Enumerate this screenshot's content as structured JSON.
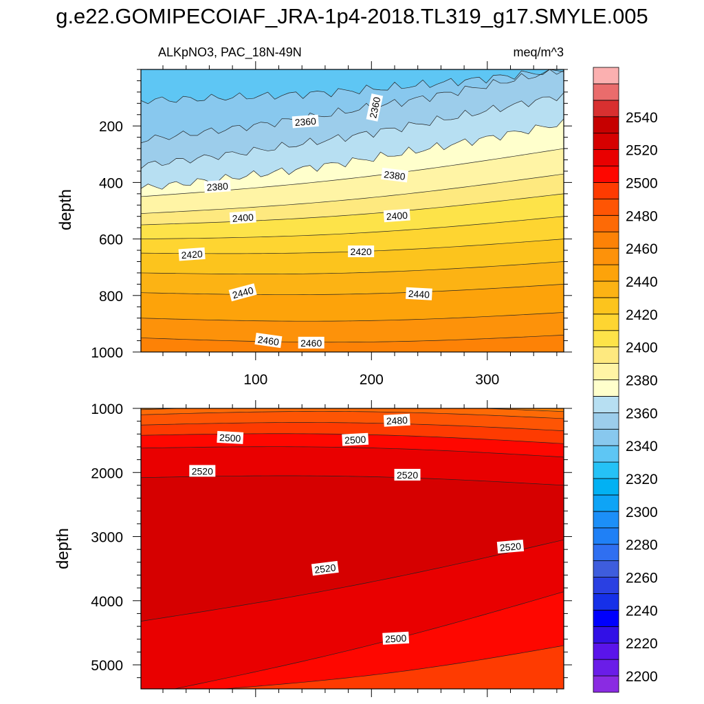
{
  "title": "g.e22.GOMIPECOIAF_JRA-1p4-2018.TL319_g17.SMYLE.005",
  "colors": {
    "band_edges": [
      2190,
      2200,
      2210,
      2220,
      2230,
      2240,
      2250,
      2260,
      2270,
      2280,
      2290,
      2300,
      2310,
      2320,
      2330,
      2340,
      2350,
      2360,
      2370,
      2380,
      2390,
      2400,
      2410,
      2420,
      2430,
      2440,
      2450,
      2460,
      2470,
      2480,
      2490,
      2500,
      2510,
      2520,
      2530,
      2540,
      2550,
      2560
    ],
    "band_fills": [
      "#8a2be2",
      "#6a1de8",
      "#5a14ea",
      "#3210e6",
      "#0000fd",
      "#1630e8",
      "#2a40e2",
      "#3e5ddd",
      "#2f6ff1",
      "#1f80f6",
      "#1c8ff8",
      "#0ea4f6",
      "#02b1f3",
      "#25c2f6",
      "#5ec6f4",
      "#88c8ee",
      "#9ccdeb",
      "#b7dff2",
      "#ffffcc",
      "#fff4a5",
      "#fee97f",
      "#fde349",
      "#fed531",
      "#fcc41d",
      "#fcb314",
      "#fda30a",
      "#fd920a",
      "#fd8206",
      "#fd6a06",
      "#fe5504",
      "#fe3b01",
      "#fe0700",
      "#e90000",
      "#d60000",
      "#c60000",
      "#d83030",
      "#ea6c6c",
      "#fbb0b0"
    ]
  },
  "colorbar": {
    "labels": [
      "2200",
      "2220",
      "2240",
      "2260",
      "2280",
      "2300",
      "2320",
      "2340",
      "2360",
      "2380",
      "2400",
      "2420",
      "2440",
      "2460",
      "2480",
      "2500",
      "2520",
      "2540"
    ]
  },
  "chart_data": [
    {
      "type": "contour",
      "panel": "upper",
      "title_left": "ALKpNO3, PAC_18N-49N",
      "title_right": "meq/m^3",
      "xlabel": "",
      "ylabel": "depth",
      "xlim": [
        1,
        366
      ],
      "ylim": [
        1000,
        0
      ],
      "x_ticks": [
        "100",
        "200",
        "300"
      ],
      "y_ticks": [
        "200",
        "400",
        "600",
        "800",
        "1000"
      ],
      "contour_interval": 10,
      "contour_lines": [
        {
          "level": 2340,
          "x": [
            1,
            366
          ],
          "depth_start": 110,
          "depth_end": 0
        },
        {
          "level": 2350,
          "x": [
            1,
            366
          ],
          "depth_start": 250,
          "depth_end": 0
        },
        {
          "level": 2360,
          "x": [
            1,
            366
          ],
          "depth_start": 340,
          "depth_end": 90
        },
        {
          "level": 2370,
          "x": [
            1,
            366
          ],
          "depth_start": 420,
          "depth_end": 190
        },
        {
          "level": 2380,
          "x": [
            1,
            366
          ],
          "depth_start": 450,
          "depth_end": 280
        },
        {
          "level": 2390,
          "x": [
            1,
            366
          ],
          "depth_start": 510,
          "depth_end": 370
        },
        {
          "level": 2400,
          "x": [
            1,
            366
          ],
          "depth_start": 550,
          "depth_end": 440
        },
        {
          "level": 2410,
          "x": [
            1,
            366
          ],
          "depth_start": 600,
          "depth_end": 520
        },
        {
          "level": 2420,
          "x": [
            1,
            366
          ],
          "depth_start": 650,
          "depth_end": 600
        },
        {
          "level": 2430,
          "x": [
            1,
            366
          ],
          "depth_start": 720,
          "depth_end": 680
        },
        {
          "level": 2440,
          "x": [
            1,
            366
          ],
          "depth_start": 790,
          "depth_end": 760
        },
        {
          "level": 2450,
          "x": [
            1,
            366
          ],
          "depth_start": 880,
          "depth_end": 860
        },
        {
          "level": 2460,
          "x": [
            1,
            366
          ],
          "depth_start": 950,
          "depth_end": 940
        }
      ],
      "contour_labels": [
        {
          "text": "2360",
          "x": 143,
          "depth": 185,
          "angle": -4
        },
        {
          "text": "2360",
          "x": 203,
          "depth": 135,
          "angle": -78
        },
        {
          "text": "2380",
          "x": 67,
          "depth": 415,
          "angle": -4
        },
        {
          "text": "2380",
          "x": 220,
          "depth": 375,
          "angle": 7
        },
        {
          "text": "2400",
          "x": 89,
          "depth": 525,
          "angle": -4
        },
        {
          "text": "2400",
          "x": 222,
          "depth": 518,
          "angle": -4
        },
        {
          "text": "2420",
          "x": 45,
          "depth": 655,
          "angle": -4
        },
        {
          "text": "2420",
          "x": 191,
          "depth": 645,
          "angle": 0
        },
        {
          "text": "2440",
          "x": 89,
          "depth": 790,
          "angle": -15
        },
        {
          "text": "2440",
          "x": 241,
          "depth": 795,
          "angle": 3
        },
        {
          "text": "2460",
          "x": 111,
          "depth": 960,
          "angle": 8
        },
        {
          "text": "2460",
          "x": 148,
          "depth": 968,
          "angle": 0
        }
      ]
    },
    {
      "type": "contour",
      "panel": "lower",
      "xlabel": "",
      "ylabel": "depth",
      "xlim": [
        1,
        366
      ],
      "ylim": [
        5375,
        1000
      ],
      "x_ticks": [],
      "y_ticks": [
        "1000",
        "2000",
        "3000",
        "4000",
        "5000"
      ],
      "contour_interval": 10,
      "contour_lines": [
        {
          "level": 2470,
          "x": [
            1,
            366
          ],
          "depth_start": 1020,
          "depth_end": 1050
        },
        {
          "level": 2480,
          "x": [
            1,
            366
          ],
          "depth_start": 1100,
          "depth_end": 1160
        },
        {
          "level": 2490,
          "x": [
            1,
            366
          ],
          "depth_start": 1260,
          "depth_end": 1350
        },
        {
          "level": 2500,
          "x": [
            1,
            366
          ],
          "depth_start": 1420,
          "depth_end": 1550
        },
        {
          "level": 2510,
          "x": [
            1,
            366
          ],
          "depth_start": 1620,
          "depth_end": 1760
        },
        {
          "level": 2520,
          "x": [
            1,
            366
          ],
          "depth_start": 2080,
          "depth_end": 2200
        },
        {
          "level": 2520,
          "x": [
            1,
            366
          ],
          "depth_start": 4320,
          "depth_end": 3050
        },
        {
          "level": 2510,
          "x": [
            30,
            366
          ],
          "depth_start": 5375,
          "depth_end": 3860
        },
        {
          "level": 2500,
          "x": [
            73,
            366
          ],
          "depth_start": 5375,
          "depth_end": 4700
        }
      ],
      "contour_labels": [
        {
          "text": "2480",
          "x": 222,
          "depth": 1190,
          "angle": -3
        },
        {
          "text": "2500",
          "x": 78,
          "depth": 1460,
          "angle": 3
        },
        {
          "text": "2500",
          "x": 186,
          "depth": 1490,
          "angle": -3
        },
        {
          "text": "2520",
          "x": 54,
          "depth": 1980,
          "angle": 0
        },
        {
          "text": "2520",
          "x": 231,
          "depth": 2040,
          "angle": 0
        },
        {
          "text": "2520",
          "x": 320,
          "depth": 3160,
          "angle": -5
        },
        {
          "text": "2520",
          "x": 160,
          "depth": 3500,
          "angle": -7
        },
        {
          "text": "2500",
          "x": 221,
          "depth": 4590,
          "angle": -3
        }
      ]
    }
  ]
}
